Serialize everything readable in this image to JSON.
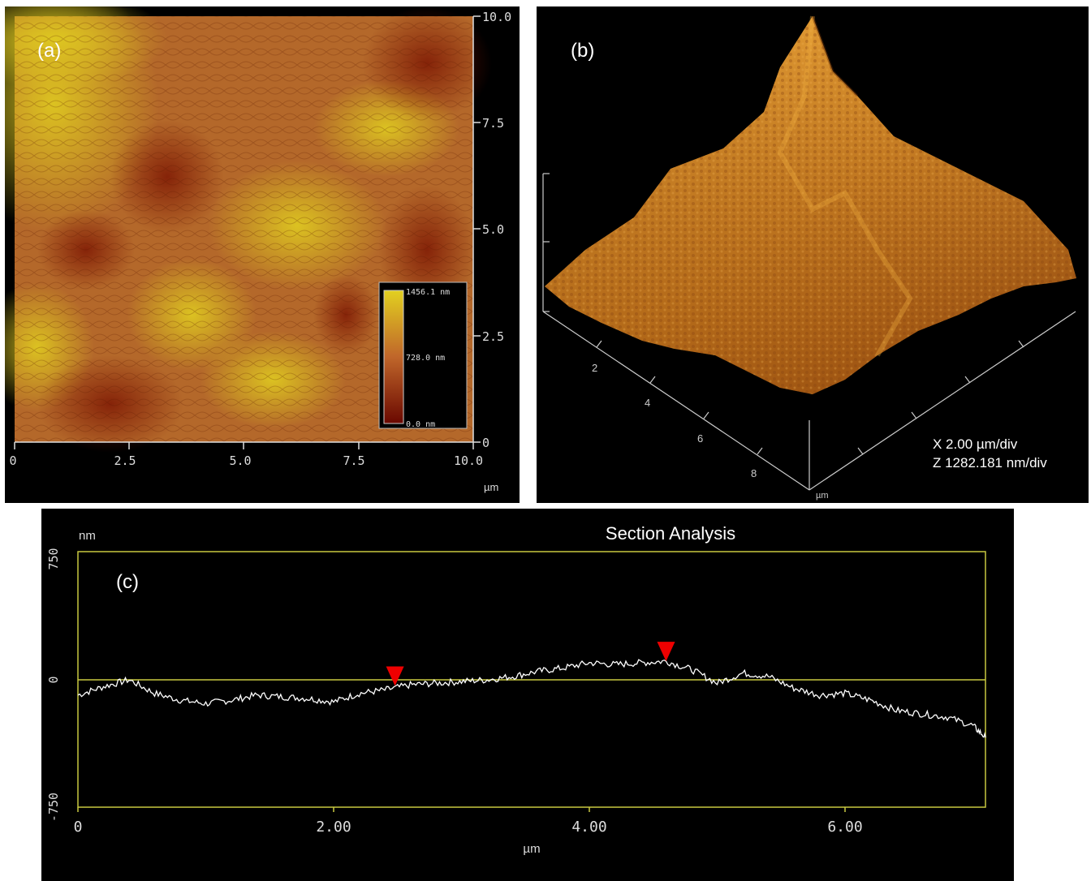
{
  "panel_a": {
    "label": "(a)",
    "x_ticks": [
      "0",
      "2.5",
      "5.0",
      "7.5",
      "10.0"
    ],
    "y_ticks": [
      "10.0",
      "7.5",
      "5.0",
      "2.5",
      "0"
    ],
    "unit": "µm",
    "colorbar": {
      "max": "1456.1 nm",
      "mid": "728.0 nm",
      "min": "0.0 nm"
    },
    "colors": {
      "low": "#6e0c00",
      "mid": "#c0662a",
      "high": "#d6c41c"
    }
  },
  "panel_b": {
    "label": "(b)",
    "axis_ticks": [
      "2",
      "4",
      "6",
      "8"
    ],
    "unit": "µm",
    "scale_x": "X 2.00 µm/div",
    "scale_z": "Z 1282.181 nm/div"
  },
  "panel_c": {
    "label": "(c)",
    "title": "Section Analysis",
    "y_unit": "nm",
    "x_unit": "µm",
    "y_ticks": [
      "750",
      "0",
      "-750"
    ],
    "x_ticks": [
      "0",
      "2.00",
      "4.00",
      "6.00"
    ],
    "frame_color": "#c8c840",
    "marker_color": "#ee0000"
  },
  "chart_data": {
    "type": "line",
    "title": "Section Analysis",
    "xlabel": "µm",
    "ylabel": "nm",
    "xlim": [
      0,
      7.1
    ],
    "ylim": [
      -750,
      750
    ],
    "grid": false,
    "series": [
      {
        "x": [
          0,
          0.2,
          0.4,
          0.6,
          0.8,
          1.0,
          1.2,
          1.4,
          1.6,
          1.8,
          2.0,
          2.2,
          2.4,
          2.6,
          2.8,
          3.0,
          3.2,
          3.4,
          3.6,
          3.8,
          4.0,
          4.2,
          4.4,
          4.6,
          4.8,
          5.0,
          5.2,
          5.4,
          5.6,
          5.8,
          6.0,
          6.2,
          6.4,
          6.6,
          6.8,
          7.0,
          7.1
        ],
        "values": [
          -90,
          -40,
          0,
          -80,
          -120,
          -140,
          -120,
          -90,
          -100,
          -110,
          -130,
          -80,
          -60,
          -30,
          -20,
          -10,
          0,
          20,
          50,
          70,
          100,
          90,
          100,
          110,
          60,
          -20,
          40,
          20,
          -50,
          -90,
          -80,
          -120,
          -180,
          -200,
          -220,
          -270,
          -340
        ]
      }
    ],
    "markers": [
      {
        "x": 2.48,
        "y": -50
      },
      {
        "x": 4.6,
        "y": 95
      }
    ]
  }
}
